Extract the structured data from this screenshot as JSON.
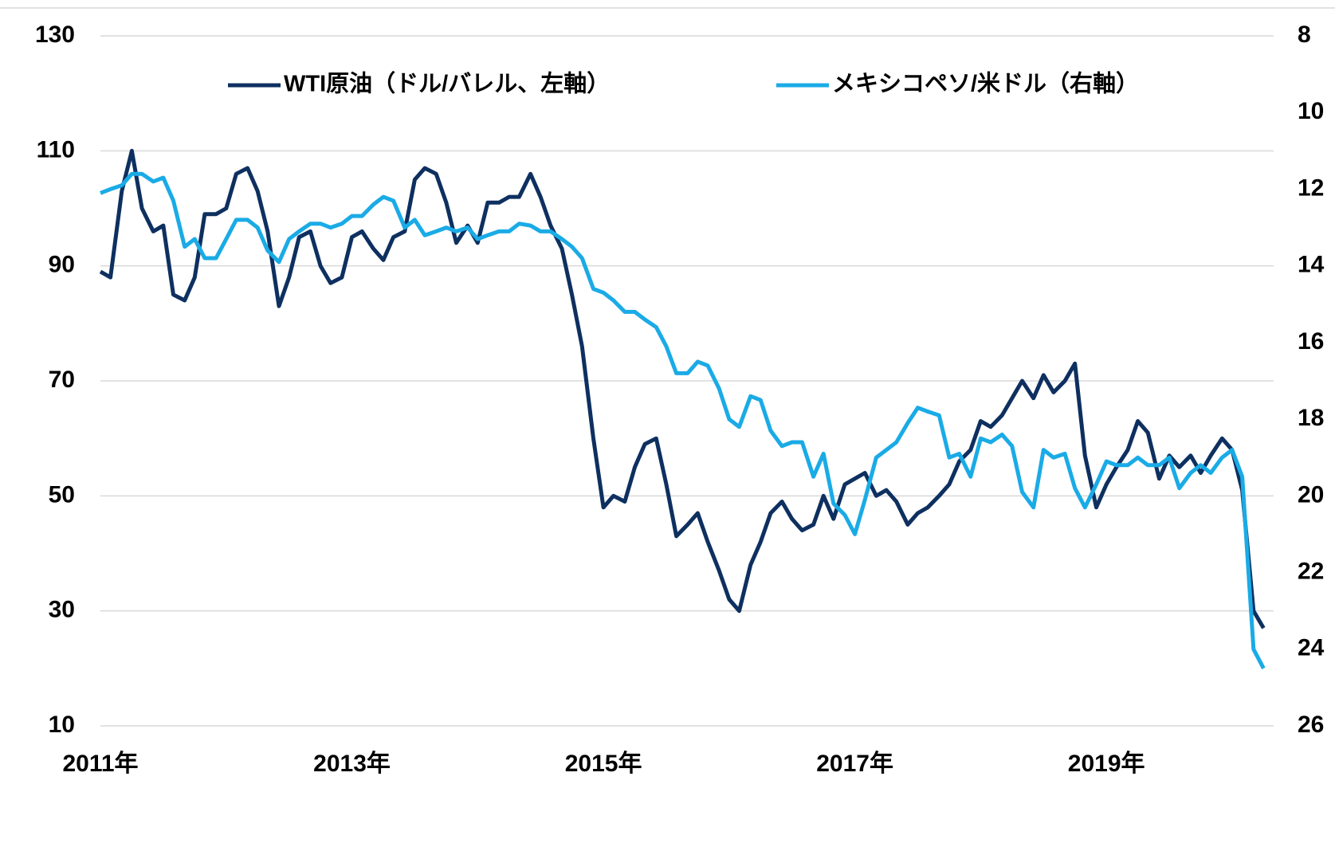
{
  "chart_data": {
    "type": "line",
    "legend": "top",
    "grid": true,
    "xlim": [
      2011,
      2020.33
    ],
    "xticks": [
      {
        "value": 2011,
        "label": "2011年"
      },
      {
        "value": 2013,
        "label": "2013年"
      },
      {
        "value": 2015,
        "label": "2015年"
      },
      {
        "value": 2017,
        "label": "2017年"
      },
      {
        "value": 2019,
        "label": "2019年"
      }
    ],
    "ylim": [
      10,
      130
    ],
    "yticks": [
      10,
      30,
      50,
      70,
      90,
      110,
      130
    ],
    "y2lim": [
      8,
      26
    ],
    "y2ticks": [
      8,
      10,
      12,
      14,
      16,
      18,
      20,
      22,
      24,
      26
    ],
    "y2_inverted": true,
    "x": [
      2011.0,
      2011.08,
      2011.17,
      2011.25,
      2011.33,
      2011.42,
      2011.5,
      2011.58,
      2011.67,
      2011.75,
      2011.83,
      2011.92,
      2012.0,
      2012.08,
      2012.17,
      2012.25,
      2012.33,
      2012.42,
      2012.5,
      2012.58,
      2012.67,
      2012.75,
      2012.83,
      2012.92,
      2013.0,
      2013.08,
      2013.17,
      2013.25,
      2013.33,
      2013.42,
      2013.5,
      2013.58,
      2013.67,
      2013.75,
      2013.83,
      2013.92,
      2014.0,
      2014.08,
      2014.17,
      2014.25,
      2014.33,
      2014.42,
      2014.5,
      2014.58,
      2014.67,
      2014.75,
      2014.83,
      2014.92,
      2015.0,
      2015.08,
      2015.17,
      2015.25,
      2015.33,
      2015.42,
      2015.5,
      2015.58,
      2015.67,
      2015.75,
      2015.83,
      2015.92,
      2016.0,
      2016.08,
      2016.17,
      2016.25,
      2016.33,
      2016.42,
      2016.5,
      2016.58,
      2016.67,
      2016.75,
      2016.83,
      2016.92,
      2017.0,
      2017.08,
      2017.17,
      2017.25,
      2017.33,
      2017.42,
      2017.5,
      2017.58,
      2017.67,
      2017.75,
      2017.83,
      2017.92,
      2018.0,
      2018.08,
      2018.17,
      2018.25,
      2018.33,
      2018.42,
      2018.5,
      2018.58,
      2018.67,
      2018.75,
      2018.83,
      2018.92,
      2019.0,
      2019.08,
      2019.17,
      2019.25,
      2019.33,
      2019.42,
      2019.5,
      2019.58,
      2019.67,
      2019.75,
      2019.83,
      2019.92,
      2020.0,
      2020.08,
      2020.17,
      2020.25
    ],
    "series": [
      {
        "name": "WTI原油（ドル/バレル、左軸）",
        "color": "#0e3060",
        "axis": "y",
        "values": [
          89,
          88,
          103,
          110,
          100,
          96,
          97,
          85,
          84,
          88,
          99,
          99,
          100,
          106,
          107,
          103,
          96,
          83,
          88,
          95,
          96,
          90,
          87,
          88,
          95,
          96,
          93,
          91,
          95,
          96,
          105,
          107,
          106,
          101,
          94,
          97,
          94,
          101,
          101,
          102,
          102,
          106,
          102,
          97,
          93,
          85,
          76,
          60,
          48,
          50,
          49,
          55,
          59,
          60,
          52,
          43,
          45,
          47,
          42,
          37,
          32,
          30,
          38,
          42,
          47,
          49,
          46,
          44,
          45,
          50,
          46,
          52,
          53,
          54,
          50,
          51,
          49,
          45,
          47,
          48,
          50,
          52,
          56,
          58,
          63,
          62,
          64,
          67,
          70,
          67,
          71,
          68,
          70,
          73,
          57,
          48,
          52,
          55,
          58,
          63,
          61,
          53,
          57,
          55,
          57,
          54,
          57,
          60,
          58,
          51,
          30,
          27
        ]
      },
      {
        "name": "メキシコペソ/米ドル（右軸）",
        "color": "#1aabe6",
        "axis": "y2",
        "values": [
          12.1,
          12.0,
          11.9,
          11.6,
          11.6,
          11.8,
          11.7,
          12.3,
          13.5,
          13.3,
          13.8,
          13.8,
          13.3,
          12.8,
          12.8,
          13.0,
          13.6,
          13.9,
          13.3,
          13.1,
          12.9,
          12.9,
          13.0,
          12.9,
          12.7,
          12.7,
          12.4,
          12.2,
          12.3,
          13.0,
          12.8,
          13.2,
          13.1,
          13.0,
          13.1,
          13.0,
          13.3,
          13.2,
          13.1,
          13.1,
          12.9,
          12.95,
          13.1,
          13.1,
          13.3,
          13.5,
          13.8,
          14.6,
          14.7,
          14.9,
          15.2,
          15.2,
          15.4,
          15.6,
          16.1,
          16.8,
          16.8,
          16.5,
          16.6,
          17.2,
          18.0,
          18.2,
          17.4,
          17.5,
          18.3,
          18.7,
          18.6,
          18.6,
          19.5,
          18.9,
          20.2,
          20.5,
          21.0,
          20.1,
          19.0,
          18.8,
          18.6,
          18.1,
          17.7,
          17.8,
          17.9,
          19.0,
          18.9,
          19.5,
          18.5,
          18.6,
          18.4,
          18.7,
          19.9,
          20.3,
          18.8,
          19.0,
          18.9,
          19.8,
          20.3,
          19.7,
          19.1,
          19.2,
          19.2,
          19.0,
          19.2,
          19.2,
          19.0,
          19.8,
          19.4,
          19.2,
          19.4,
          19.0,
          18.8,
          19.5,
          24.0,
          24.5
        ]
      }
    ]
  }
}
